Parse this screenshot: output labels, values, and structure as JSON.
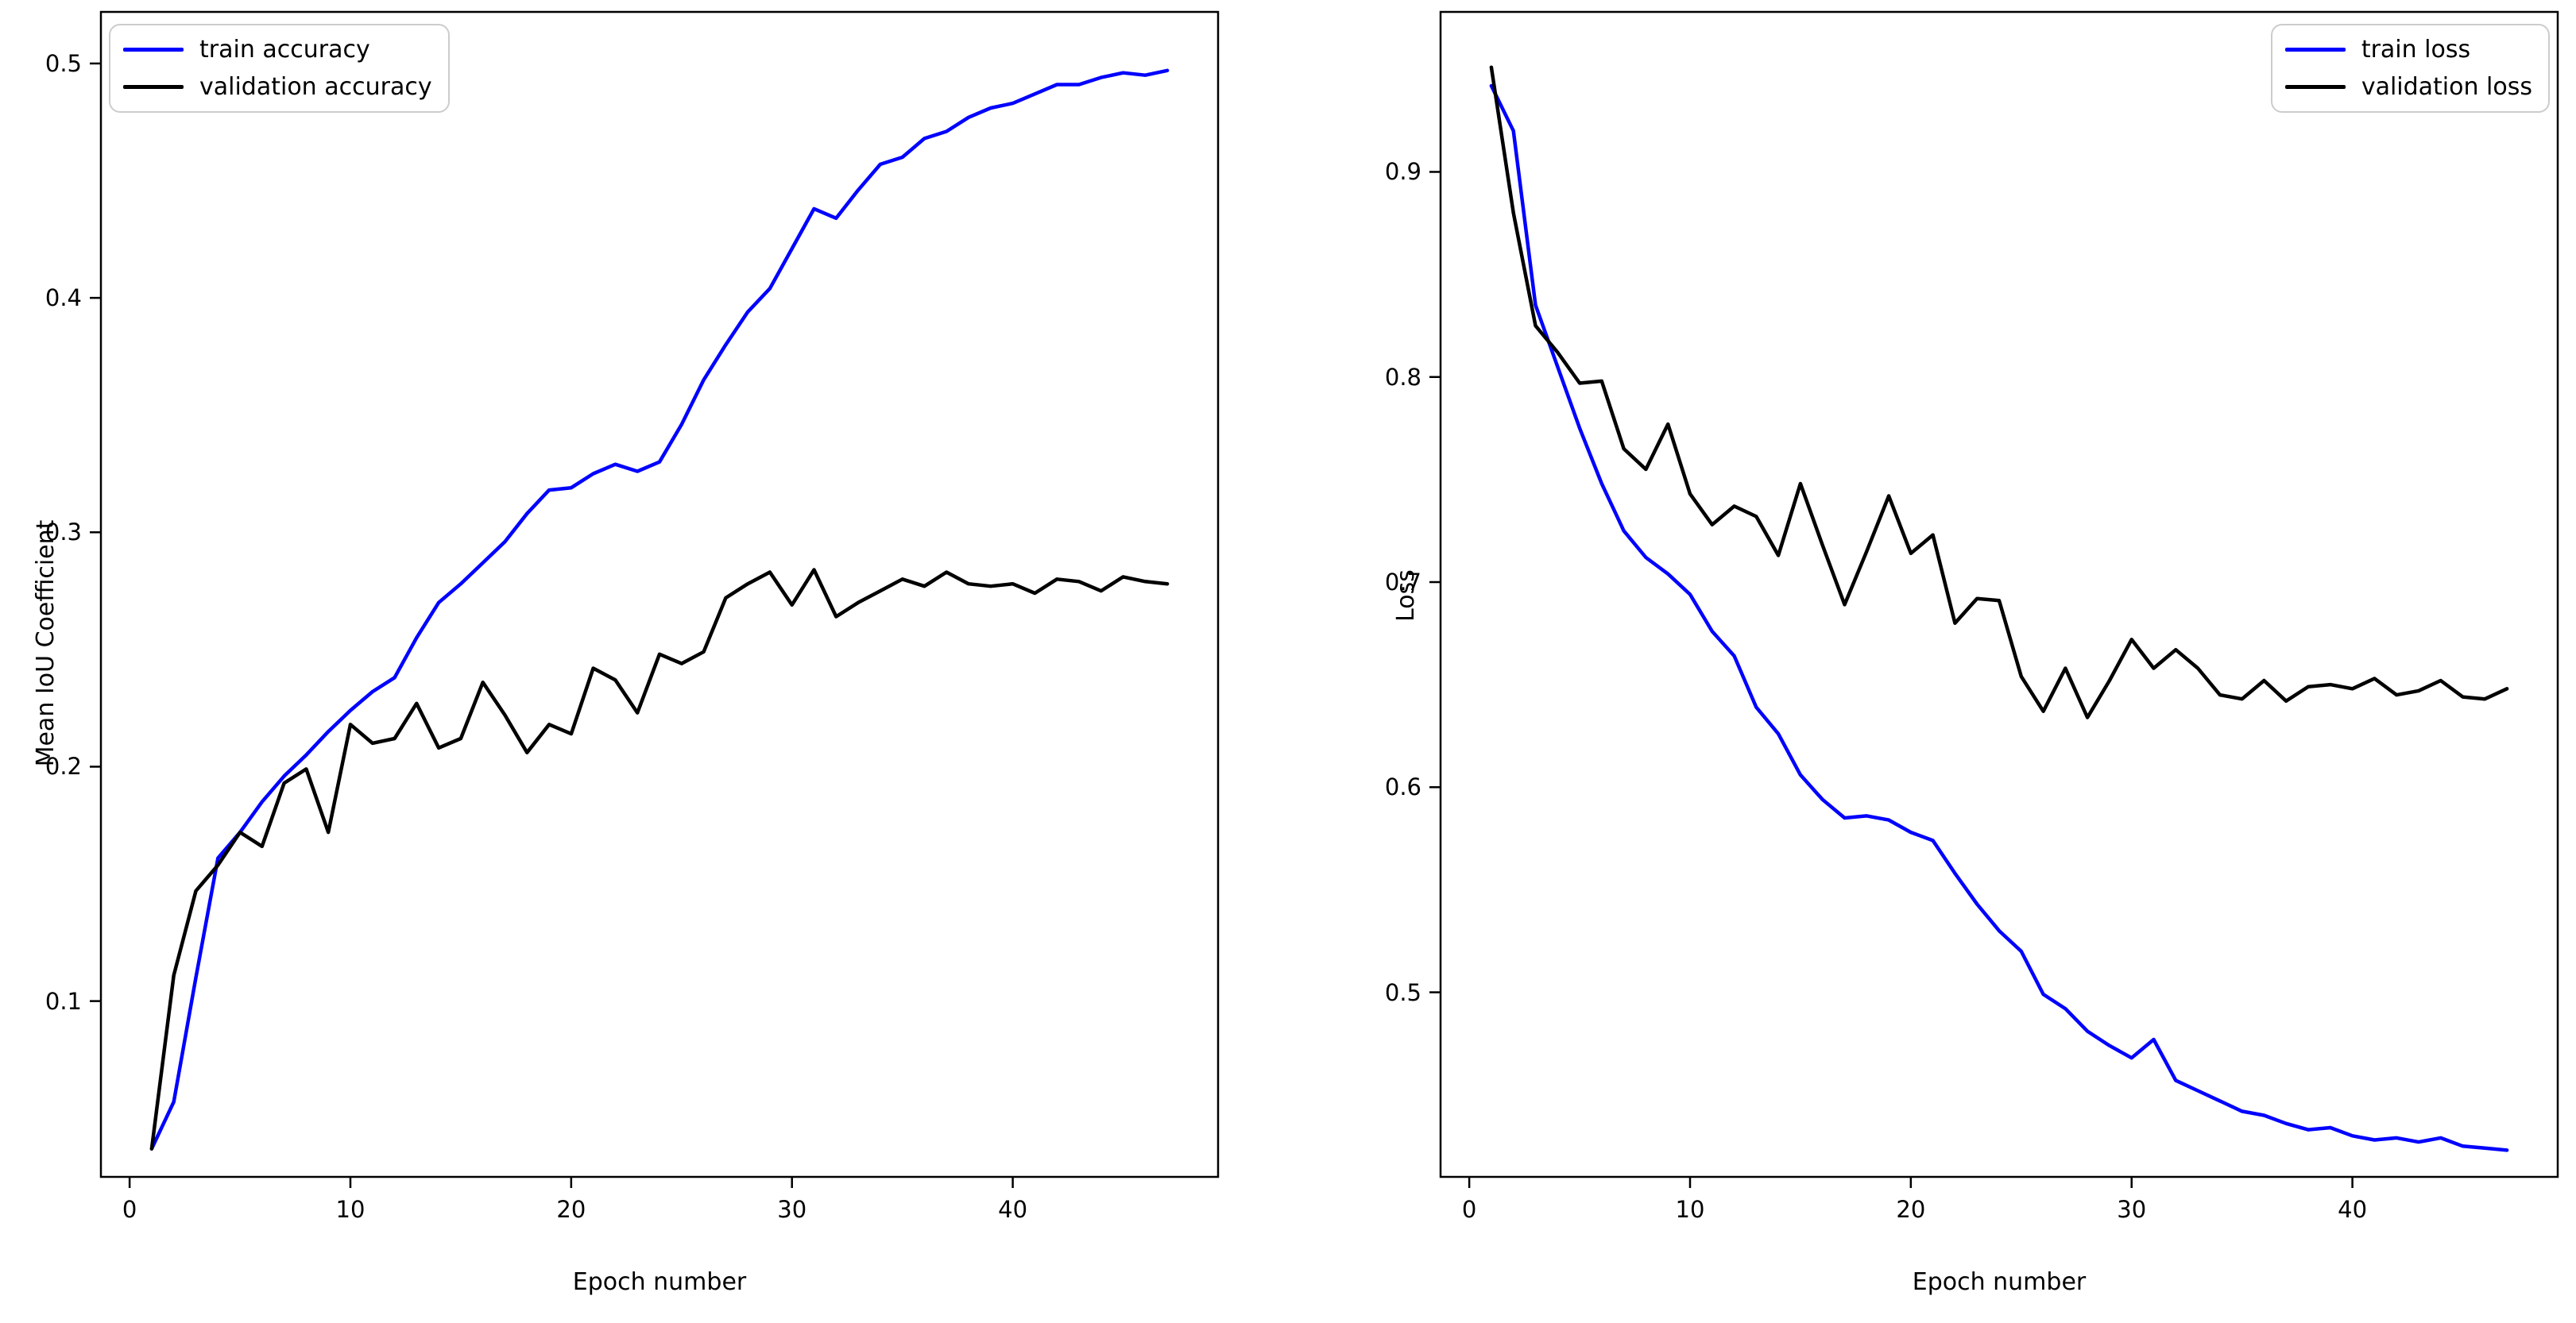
{
  "figure": {
    "background_color": "#ffffff",
    "axes_color": "#000000",
    "legend_border_color": "#cccccc",
    "grid": false
  },
  "chart_data": [
    {
      "type": "line",
      "title": "",
      "xlabel": "Epoch number",
      "ylabel": "Mean IoU Coefficient",
      "legend_position": "upper-left",
      "grid": false,
      "x_start": 1,
      "x_step": 1,
      "xlim": [
        -1.3,
        49.3
      ],
      "ylim": [
        0.025,
        0.522
      ],
      "xticks": [
        0,
        10,
        20,
        30,
        40
      ],
      "yticks": [
        0.1,
        0.2,
        0.3,
        0.4,
        0.5
      ],
      "ytick_decimals": 1,
      "series": [
        {
          "name": "train accuracy",
          "color": "#0000ff",
          "values": [
            0.037,
            0.057,
            0.11,
            0.161,
            0.172,
            0.185,
            0.196,
            0.205,
            0.215,
            0.224,
            0.232,
            0.238,
            0.255,
            0.27,
            0.278,
            0.287,
            0.296,
            0.308,
            0.318,
            0.319,
            0.325,
            0.329,
            0.326,
            0.33,
            0.346,
            0.365,
            0.38,
            0.394,
            0.404,
            0.421,
            0.438,
            0.434,
            0.446,
            0.457,
            0.46,
            0.468,
            0.471,
            0.477,
            0.481,
            0.483,
            0.487,
            0.491,
            0.491,
            0.494,
            0.496,
            0.495,
            0.497
          ]
        },
        {
          "name": "validation accuracy",
          "color": "#000000",
          "values": [
            0.037,
            0.111,
            0.147,
            0.158,
            0.172,
            0.166,
            0.193,
            0.199,
            0.172,
            0.218,
            0.21,
            0.212,
            0.227,
            0.208,
            0.212,
            0.236,
            0.222,
            0.206,
            0.218,
            0.214,
            0.242,
            0.237,
            0.223,
            0.248,
            0.244,
            0.249,
            0.272,
            0.278,
            0.283,
            0.269,
            0.284,
            0.264,
            0.27,
            0.275,
            0.28,
            0.277,
            0.283,
            0.278,
            0.277,
            0.278,
            0.274,
            0.28,
            0.279,
            0.275,
            0.281,
            0.279,
            0.278
          ]
        }
      ]
    },
    {
      "type": "line",
      "title": "",
      "xlabel": "Epoch number",
      "ylabel": "Loss",
      "legend_position": "upper-right",
      "grid": false,
      "x_start": 1,
      "x_step": 1,
      "xlim": [
        -1.3,
        49.3
      ],
      "ylim": [
        0.41,
        0.978
      ],
      "xticks": [
        0,
        10,
        20,
        30,
        40
      ],
      "yticks": [
        0.5,
        0.6,
        0.7,
        0.8,
        0.9
      ],
      "ytick_decimals": 1,
      "series": [
        {
          "name": "train loss",
          "color": "#0000ff",
          "values": [
            0.942,
            0.92,
            0.835,
            0.805,
            0.775,
            0.748,
            0.725,
            0.712,
            0.704,
            0.694,
            0.676,
            0.664,
            0.639,
            0.626,
            0.606,
            0.594,
            0.585,
            0.586,
            0.584,
            0.578,
            0.574,
            0.558,
            0.543,
            0.53,
            0.52,
            0.499,
            0.492,
            0.481,
            0.474,
            0.468,
            0.477,
            0.457,
            0.452,
            0.447,
            0.442,
            0.44,
            0.436,
            0.433,
            0.434,
            0.43,
            0.428,
            0.429,
            0.427,
            0.429,
            0.425,
            0.424,
            0.423
          ]
        },
        {
          "name": "validation loss",
          "color": "#000000",
          "values": [
            0.951,
            0.88,
            0.825,
            0.812,
            0.797,
            0.798,
            0.765,
            0.755,
            0.777,
            0.743,
            0.728,
            0.737,
            0.732,
            0.713,
            0.748,
            0.718,
            0.689,
            0.715,
            0.742,
            0.714,
            0.723,
            0.68,
            0.692,
            0.691,
            0.654,
            0.637,
            0.658,
            0.634,
            0.652,
            0.672,
            0.658,
            0.667,
            0.658,
            0.645,
            0.643,
            0.652,
            0.642,
            0.649,
            0.65,
            0.648,
            0.653,
            0.645,
            0.647,
            0.652,
            0.644,
            0.643,
            0.648
          ]
        }
      ]
    }
  ]
}
